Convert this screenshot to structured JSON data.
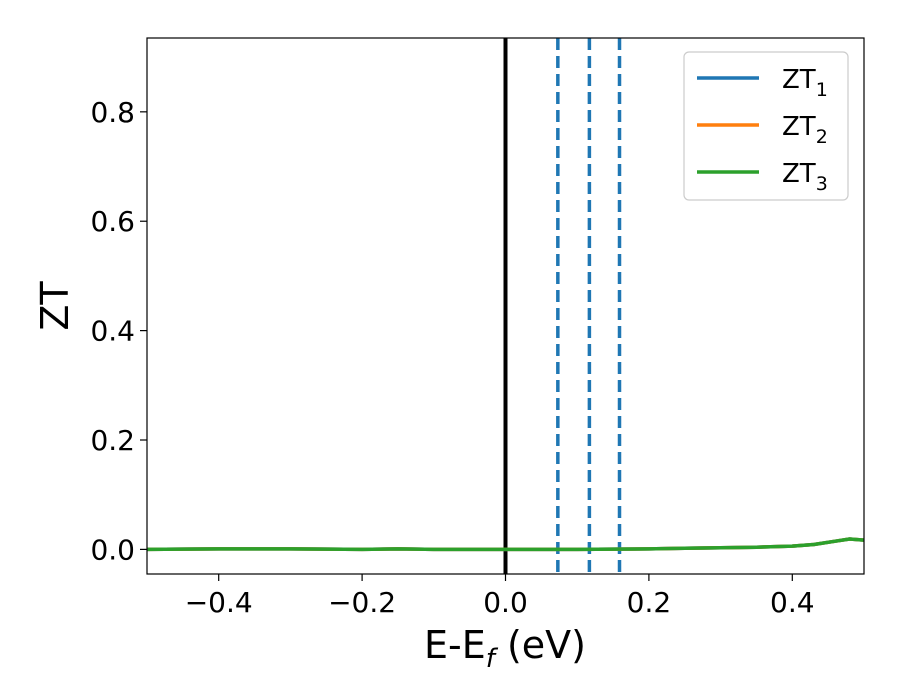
{
  "chart_data": {
    "type": "line",
    "xlabel_main": "E-E",
    "xlabel_sub": "f",
    "xlabel_unit": " (eV)",
    "ylabel": "ZT",
    "xlim": [
      -0.5,
      0.5
    ],
    "ylim": [
      -0.045,
      0.935
    ],
    "x_ticks": [
      -0.4,
      -0.2,
      0.0,
      0.2,
      0.4
    ],
    "x_tick_labels": [
      "−0.4",
      "−0.2",
      "0.0",
      "0.2",
      "0.4"
    ],
    "y_ticks": [
      0.0,
      0.2,
      0.4,
      0.6,
      0.8
    ],
    "y_tick_labels": [
      "0.0",
      "0.2",
      "0.4",
      "0.6",
      "0.8"
    ],
    "grid": false,
    "legend_position": "top-right",
    "series": [
      {
        "name_main": "ZT",
        "name_sub": "1",
        "color": "#1f77b4",
        "x": [
          -0.5,
          -0.4,
          -0.3,
          -0.2,
          -0.15,
          -0.1,
          0.0,
          0.1,
          0.2,
          0.25,
          0.3,
          0.35,
          0.4,
          0.43,
          0.46,
          0.48,
          0.5
        ],
        "y": [
          0.0,
          0.001,
          0.001,
          0.0,
          0.001,
          0.0,
          0.0,
          0.0,
          0.001,
          0.002,
          0.003,
          0.004,
          0.006,
          0.009,
          0.015,
          0.019,
          0.017
        ]
      },
      {
        "name_main": "ZT",
        "name_sub": "2",
        "color": "#ff7f0e",
        "x": [
          -0.5,
          -0.4,
          -0.3,
          -0.2,
          -0.15,
          -0.1,
          0.0,
          0.1,
          0.2,
          0.25,
          0.3,
          0.35,
          0.4,
          0.43,
          0.46,
          0.48,
          0.5
        ],
        "y": [
          0.0,
          0.001,
          0.001,
          0.0,
          0.001,
          0.0,
          0.0,
          0.0,
          0.001,
          0.002,
          0.003,
          0.004,
          0.006,
          0.009,
          0.015,
          0.019,
          0.017
        ]
      },
      {
        "name_main": "ZT",
        "name_sub": "3",
        "color": "#2ca02c",
        "x": [
          -0.5,
          -0.4,
          -0.3,
          -0.2,
          -0.15,
          -0.1,
          0.0,
          0.1,
          0.2,
          0.25,
          0.3,
          0.35,
          0.4,
          0.43,
          0.46,
          0.48,
          0.5
        ],
        "y": [
          0.0,
          0.001,
          0.001,
          0.0,
          0.001,
          0.0,
          0.0,
          0.0,
          0.001,
          0.002,
          0.003,
          0.004,
          0.006,
          0.009,
          0.015,
          0.019,
          0.017
        ]
      }
    ],
    "vertical_lines": [
      {
        "x": 0.0,
        "style": "solid",
        "color": "#000000"
      },
      {
        "x": 0.073,
        "style": "dashed",
        "color": "#1f77b4"
      },
      {
        "x": 0.117,
        "style": "dashed",
        "color": "#1f77b4"
      },
      {
        "x": 0.159,
        "style": "dashed",
        "color": "#1f77b4"
      }
    ]
  }
}
